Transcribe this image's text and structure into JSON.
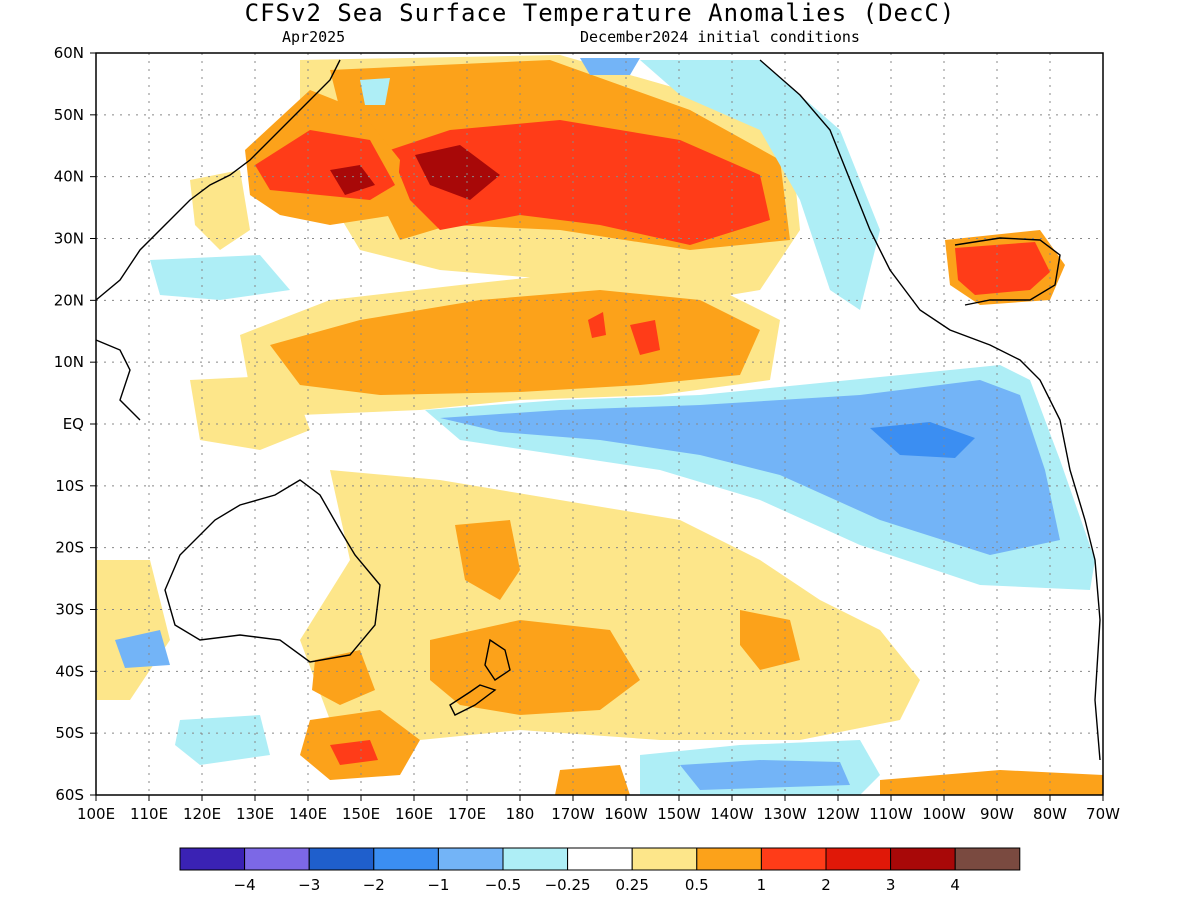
{
  "title": "CFSv2 Sea Surface Temperature Anomalies (DecC)",
  "subtitle_left": "Apr2025",
  "subtitle_right": "December2024 initial conditions",
  "lat_labels": [
    "60N",
    "50N",
    "40N",
    "30N",
    "20N",
    "10N",
    "EQ",
    "10S",
    "20S",
    "30S",
    "40S",
    "50S",
    "60S"
  ],
  "lon_labels": [
    "100E",
    "110E",
    "120E",
    "130E",
    "140E",
    "150E",
    "160E",
    "170E",
    "180",
    "170W",
    "160W",
    "150W",
    "140W",
    "130W",
    "120W",
    "110W",
    "100W",
    "90W",
    "80W",
    "70W"
  ],
  "colorbar": {
    "colors": [
      "#3a22b4",
      "#7c68e6",
      "#1f5fcc",
      "#3b8ef2",
      "#73b4f7",
      "#aeeef6",
      "#ffffff",
      "#fde68a",
      "#fca21a",
      "#ff3c18",
      "#e01808",
      "#a80808",
      "#7a4a40"
    ],
    "ticks": [
      "−4",
      "−3",
      "−2",
      "−1",
      "−0.5",
      "−0.25",
      "0.25",
      "0.5",
      "1",
      "2",
      "3",
      "4"
    ]
  }
}
